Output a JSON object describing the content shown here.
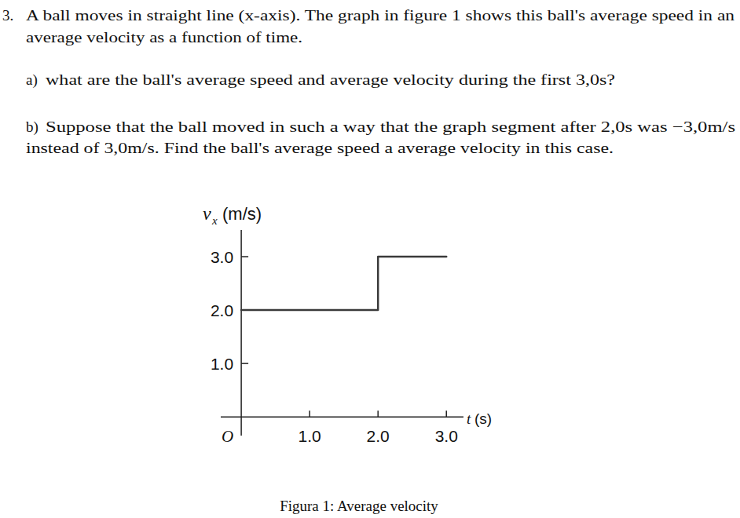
{
  "problem": {
    "number": "3.",
    "statement": [
      "A ball moves in straight line (x-axis). The graph in figure 1 shows this ball's average speed in an",
      "average velocity as a function of time."
    ],
    "parts": [
      {
        "label": "a)",
        "lines": [
          "what are the ball's average speed and average velocity during the first 3,0s?"
        ]
      },
      {
        "label": "b)",
        "lines": [
          "Suppose that the ball moved in such a way that the graph segment after 2,0s was −3,0m/s",
          "instead of 3,0m/s. Find the ball's average speed a average velocity in this case."
        ]
      }
    ],
    "caption": "Figura 1: Average velocity"
  },
  "chart_data": {
    "type": "line",
    "x_label": {
      "symbol": "t",
      "unit": "(s)"
    },
    "y_label": {
      "symbol": "v",
      "subscript": "x",
      "unit": "(m/s)"
    },
    "origin_label": "O",
    "x": [
      0,
      2.0,
      2.0,
      3.0
    ],
    "series": [
      {
        "values": [
          2.0,
          2.0,
          3.0,
          3.0
        ],
        "color": "#3a3a3a"
      }
    ],
    "xlim": [
      -0.3,
      3.25
    ],
    "ylim": [
      -0.35,
      3.5
    ],
    "xticks": [
      {
        "value": 1,
        "label": "1.0"
      },
      {
        "value": 2,
        "label": "2.0"
      },
      {
        "value": 3,
        "label": "3.0"
      }
    ],
    "yticks": [
      {
        "value": 1,
        "label": "1.0"
      },
      {
        "value": 2,
        "label": "2.0"
      },
      {
        "value": 3,
        "label": "3.0"
      }
    ],
    "grid": false
  }
}
